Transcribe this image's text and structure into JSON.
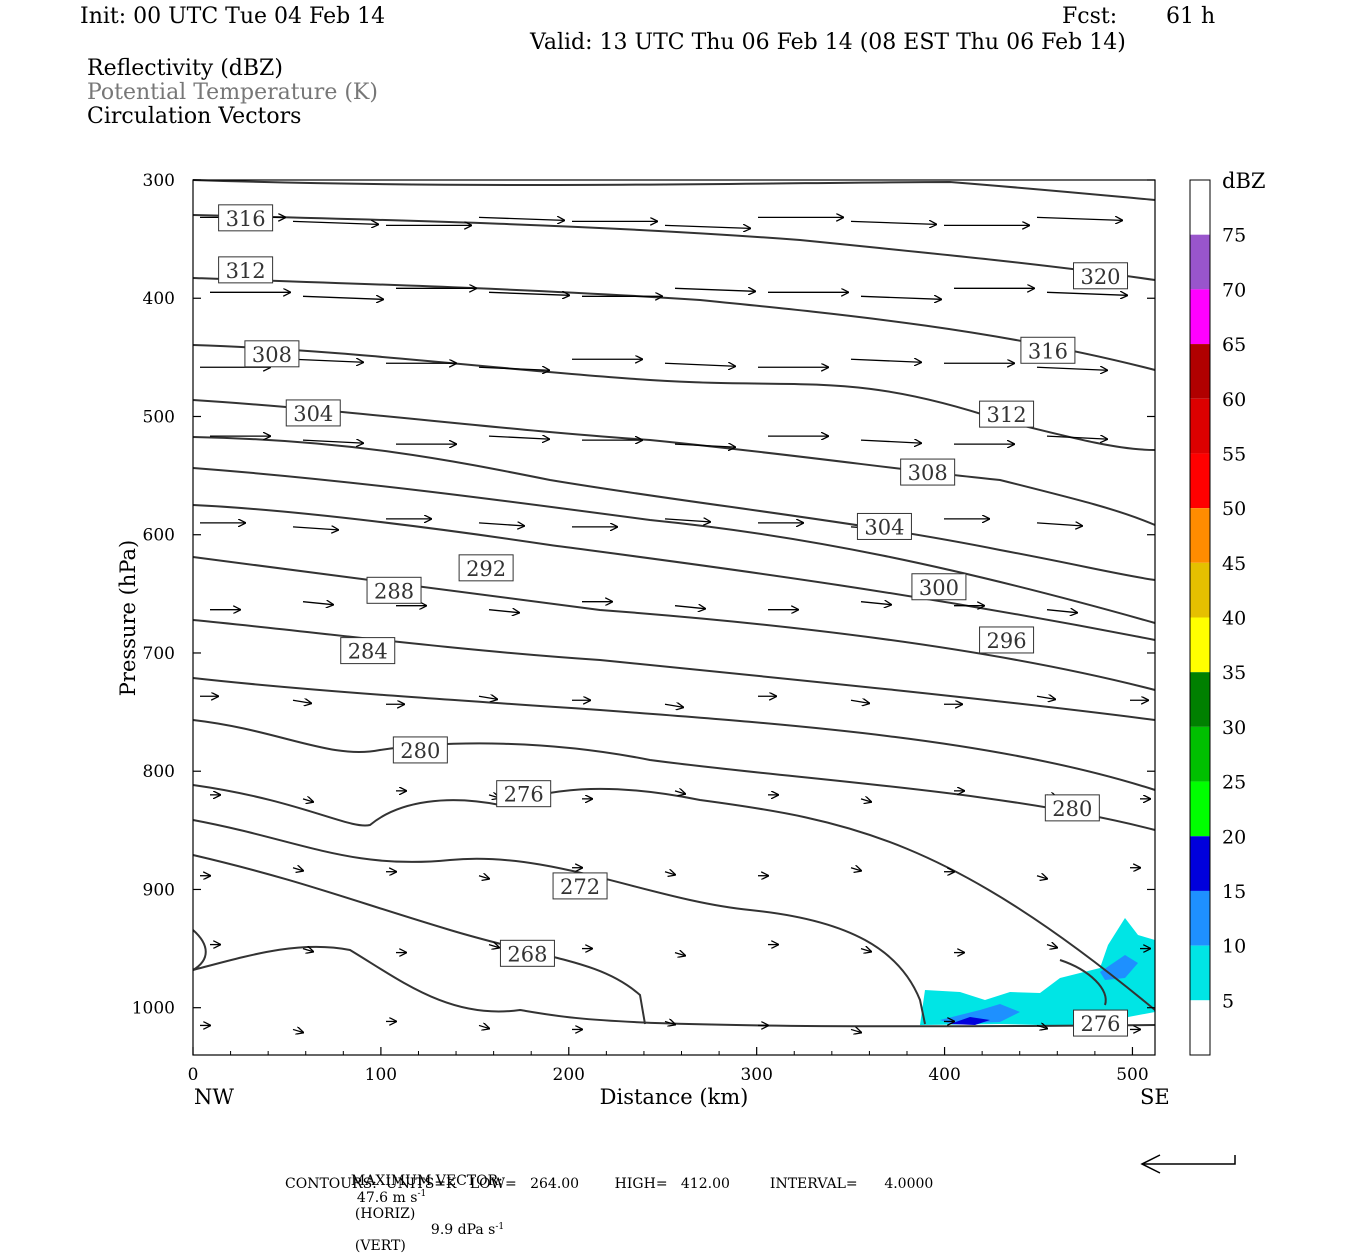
{
  "header": {
    "init": "Init: 00 UTC Tue 04 Feb 14",
    "fcst_label": "Fcst:",
    "fcst_value": "61 h",
    "valid": "Valid: 13 UTC Thu 06 Feb 14 (08 EST Thu 06 Feb 14)",
    "field1": "Reflectivity (dBZ)",
    "field2": "Potential Temperature (K)",
    "field3": "Circulation Vectors"
  },
  "chart_data": {
    "type": "contour-cross-section",
    "xlabel": "Distance (km)",
    "ylabel": "Pressure (hPa)",
    "xlim": [
      0,
      512
    ],
    "ylim": [
      1040,
      300
    ],
    "x_ticks": [
      "0",
      "100",
      "200",
      "300",
      "400",
      "500"
    ],
    "y_ticks": [
      "300",
      "400",
      "500",
      "600",
      "700",
      "800",
      "900",
      "1000"
    ],
    "x_end_labels": {
      "left": "NW",
      "right": "SE"
    },
    "colorbar": {
      "unit": "dBZ",
      "labels": [
        "5",
        "10",
        "15",
        "20",
        "25",
        "30",
        "35",
        "40",
        "45",
        "50",
        "55",
        "60",
        "65",
        "70",
        "75"
      ],
      "colors": [
        "#ffffff",
        "#00e5e5",
        "#1e90ff",
        "#0000dd",
        "#00ff00",
        "#00c000",
        "#008000",
        "#ffff00",
        "#e5c000",
        "#ff8c00",
        "#ff0000",
        "#dd0000",
        "#b00000",
        "#ff00ff",
        "#9955cc",
        "#ffffff"
      ]
    },
    "contour_labels": [
      {
        "text": "316",
        "x": 28,
        "p": 332
      },
      {
        "text": "312",
        "x": 28,
        "p": 376
      },
      {
        "text": "308",
        "x": 42,
        "p": 447
      },
      {
        "text": "304",
        "x": 64,
        "p": 497
      },
      {
        "text": "292",
        "x": 156,
        "p": 628
      },
      {
        "text": "288",
        "x": 107,
        "p": 647
      },
      {
        "text": "284",
        "x": 93,
        "p": 698
      },
      {
        "text": "280",
        "x": 121,
        "p": 782
      },
      {
        "text": "276",
        "x": 176,
        "p": 819
      },
      {
        "text": "272",
        "x": 206,
        "p": 897
      },
      {
        "text": "268",
        "x": 178,
        "p": 954
      },
      {
        "text": "320",
        "x": 483,
        "p": 381
      },
      {
        "text": "316",
        "x": 455,
        "p": 444
      },
      {
        "text": "312",
        "x": 433,
        "p": 498
      },
      {
        "text": "308",
        "x": 391,
        "p": 547
      },
      {
        "text": "304",
        "x": 368,
        "p": 593
      },
      {
        "text": "300",
        "x": 397,
        "p": 644
      },
      {
        "text": "296",
        "x": 433,
        "p": 689
      },
      {
        "text": "280",
        "x": 468,
        "p": 831
      },
      {
        "text": "276",
        "x": 483,
        "p": 1013
      }
    ],
    "footer": {
      "max_vector_label": "MAXIMUM VECTOR:",
      "horiz": "47.6 m s",
      "horiz_unit": "(HORIZ)",
      "vert": "9.9 dPa s",
      "vert_unit": "(VERT)",
      "exponent": "-1",
      "contours": "CONTOURS:  UNITS=K   LOW=   264.00        HIGH=   412.00         INTERVAL=      4.0000"
    }
  }
}
